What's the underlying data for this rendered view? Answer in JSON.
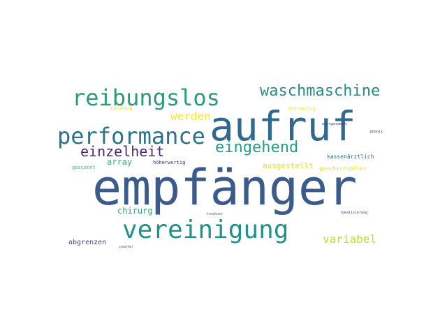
{
  "words": [
    {
      "text": "empfänger",
      "color": "#3b5b8c"
    },
    {
      "text": "aufruf",
      "color": "#31688e"
    },
    {
      "text": "vereinigung",
      "color": "#21918c"
    },
    {
      "text": "reibungslos",
      "color": "#2a9d74"
    },
    {
      "text": "performance",
      "color": "#2c728e"
    },
    {
      "text": "waschmaschine",
      "color": "#2a8a8a"
    },
    {
      "text": "eingehend",
      "color": "#22a08a"
    },
    {
      "text": "einzelheit",
      "color": "#482878"
    },
    {
      "text": "werden",
      "color": "#fde725"
    },
    {
      "text": "variabel",
      "color": "#c2df23"
    },
    {
      "text": "array",
      "color": "#35b779"
    },
    {
      "text": "chirurg",
      "color": "#25a584"
    },
    {
      "text": "ausgestellt",
      "color": "#e3e418"
    },
    {
      "text": "abgrenzen",
      "color": "#3e4a89"
    },
    {
      "text": "kassenärztlich",
      "color": "#2f6b8e"
    },
    {
      "text": "geschirrspüler",
      "color": "#e8e419"
    },
    {
      "text": "gescannt",
      "color": "#3dbc74"
    },
    {
      "text": "höherwertig",
      "color": "#472d7b"
    },
    {
      "text": "mehrmalig",
      "color": "#fde725"
    },
    {
      "text": "zuordnung",
      "color": "#d8e219"
    },
    {
      "text": "wahrgenommen",
      "color": "#3f4889"
    },
    {
      "text": "phonix",
      "color": "#46327e"
    },
    {
      "text": "lokalisierung",
      "color": "#433e85"
    },
    {
      "text": "trockner",
      "color": "#35608d"
    },
    {
      "text": "counter",
      "color": "#3b528b"
    }
  ]
}
